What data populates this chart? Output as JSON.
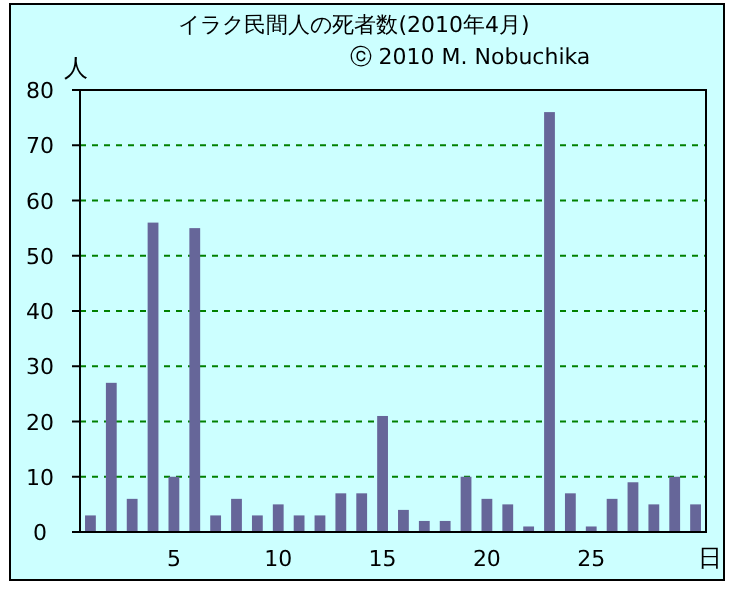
{
  "chart_data": {
    "type": "bar",
    "title": "イラク民間人の死者数(2010年4月)",
    "subtitle": "ⓒ 2010 M. Nobuchika",
    "xlabel": "日",
    "ylabel": "人",
    "categories": [
      null,
      null,
      null,
      null,
      "5",
      null,
      null,
      null,
      null,
      "10",
      null,
      null,
      null,
      null,
      "15",
      null,
      null,
      null,
      null,
      "20",
      null,
      null,
      null,
      null,
      "25",
      null,
      null,
      null,
      null,
      null
    ],
    "values": [
      3,
      27,
      6,
      56,
      10,
      55,
      3,
      6,
      3,
      5,
      3,
      3,
      7,
      7,
      21,
      4,
      2,
      2,
      10,
      6,
      5,
      1,
      76,
      7,
      1,
      6,
      9,
      5,
      10,
      5
    ],
    "color": "#666699",
    "ylim": [
      0,
      80
    ],
    "yticks": [
      0,
      10,
      20,
      30,
      40,
      50,
      60,
      70,
      80
    ],
    "grid": "y"
  }
}
